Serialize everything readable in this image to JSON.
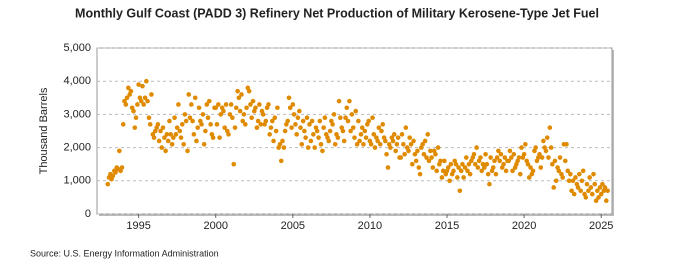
{
  "chart_data": {
    "type": "scatter",
    "title": "Monthly Gulf Coast (PADD 3) Refinery Net Production of Military Kerosene-Type Jet Fuel",
    "y_label": "Thousand Barrels",
    "source": "Source: U.S. Energy Information Administration",
    "color": "#e08a00",
    "grid": true,
    "xlim": [
      1992.3,
      2025.7
    ],
    "xticks": [
      1995,
      2000,
      2005,
      2010,
      2015,
      2020,
      2025
    ],
    "ylim": [
      0,
      5000
    ],
    "yticks": [
      0,
      {
        "value": 1000,
        "label": "1,000"
      },
      {
        "value": 2000,
        "label": "2,000"
      },
      {
        "value": 3000,
        "label": "3,000"
      },
      {
        "value": 4000,
        "label": "4,000"
      },
      {
        "value": 5000,
        "label": "5,000"
      }
    ],
    "x": [
      1993.0,
      1993.08,
      1993.17,
      1993.25,
      1993.33,
      1993.42,
      1993.5,
      1993.58,
      1993.67,
      1993.75,
      1993.83,
      1993.92,
      1994.0,
      1994.08,
      1994.17,
      1994.25,
      1994.33,
      1994.42,
      1994.5,
      1994.58,
      1994.67,
      1994.75,
      1994.83,
      1994.92,
      1995.0,
      1995.08,
      1995.17,
      1995.25,
      1995.33,
      1995.42,
      1995.5,
      1995.58,
      1995.67,
      1995.75,
      1995.83,
      1995.92,
      1996.0,
      1996.08,
      1996.17,
      1996.25,
      1996.33,
      1996.42,
      1996.5,
      1996.58,
      1996.67,
      1996.75,
      1996.83,
      1996.92,
      1997.0,
      1997.08,
      1997.17,
      1997.25,
      1997.33,
      1997.42,
      1997.5,
      1997.58,
      1997.67,
      1997.75,
      1997.83,
      1997.92,
      1998.0,
      1998.08,
      1998.17,
      1998.25,
      1998.33,
      1998.42,
      1998.5,
      1998.58,
      1998.67,
      1998.75,
      1998.83,
      1998.92,
      1999.0,
      1999.08,
      1999.17,
      1999.25,
      1999.33,
      1999.42,
      1999.5,
      1999.58,
      1999.67,
      1999.75,
      1999.83,
      1999.92,
      2000.0,
      2000.08,
      2000.17,
      2000.25,
      2000.33,
      2000.42,
      2000.5,
      2000.58,
      2000.67,
      2000.75,
      2000.83,
      2000.92,
      2001.0,
      2001.08,
      2001.17,
      2001.25,
      2001.33,
      2001.42,
      2001.5,
      2001.58,
      2001.67,
      2001.75,
      2001.83,
      2001.92,
      2002.0,
      2002.08,
      2002.17,
      2002.25,
      2002.33,
      2002.42,
      2002.5,
      2002.58,
      2002.67,
      2002.75,
      2002.83,
      2002.92,
      2003.0,
      2003.08,
      2003.17,
      2003.25,
      2003.33,
      2003.42,
      2003.5,
      2003.58,
      2003.67,
      2003.75,
      2003.83,
      2003.92,
      2004.0,
      2004.08,
      2004.17,
      2004.25,
      2004.33,
      2004.42,
      2004.5,
      2004.58,
      2004.67,
      2004.75,
      2004.83,
      2004.92,
      2005.0,
      2005.08,
      2005.17,
      2005.25,
      2005.33,
      2005.42,
      2005.5,
      2005.58,
      2005.67,
      2005.75,
      2005.83,
      2005.92,
      2006.0,
      2006.08,
      2006.17,
      2006.25,
      2006.33,
      2006.42,
      2006.5,
      2006.58,
      2006.67,
      2006.75,
      2006.83,
      2006.92,
      2007.0,
      2007.08,
      2007.17,
      2007.25,
      2007.33,
      2007.42,
      2007.5,
      2007.58,
      2007.67,
      2007.75,
      2007.83,
      2007.92,
      2008.0,
      2008.08,
      2008.17,
      2008.25,
      2008.33,
      2008.42,
      2008.5,
      2008.58,
      2008.67,
      2008.75,
      2008.83,
      2008.92,
      2009.0,
      2009.08,
      2009.17,
      2009.25,
      2009.33,
      2009.42,
      2009.5,
      2009.58,
      2009.67,
      2009.75,
      2009.83,
      2009.92,
      2010.0,
      2010.08,
      2010.17,
      2010.25,
      2010.33,
      2010.42,
      2010.5,
      2010.58,
      2010.67,
      2010.75,
      2010.83,
      2010.92,
      2011.0,
      2011.08,
      2011.17,
      2011.25,
      2011.33,
      2011.42,
      2011.5,
      2011.58,
      2011.67,
      2011.75,
      2011.83,
      2011.92,
      2012.0,
      2012.08,
      2012.17,
      2012.25,
      2012.33,
      2012.42,
      2012.5,
      2012.58,
      2012.67,
      2012.75,
      2012.83,
      2012.92,
      2013.0,
      2013.08,
      2013.17,
      2013.25,
      2013.33,
      2013.42,
      2013.5,
      2013.58,
      2013.67,
      2013.75,
      2013.83,
      2013.92,
      2014.0,
      2014.08,
      2014.17,
      2014.25,
      2014.33,
      2014.42,
      2014.5,
      2014.58,
      2014.67,
      2014.75,
      2014.83,
      2014.92,
      2015.0,
      2015.08,
      2015.17,
      2015.25,
      2015.33,
      2015.42,
      2015.5,
      2015.58,
      2015.67,
      2015.75,
      2015.83,
      2015.92,
      2016.0,
      2016.08,
      2016.17,
      2016.25,
      2016.33,
      2016.42,
      2016.5,
      2016.58,
      2016.67,
      2016.75,
      2016.83,
      2016.92,
      2017.0,
      2017.08,
      2017.17,
      2017.25,
      2017.33,
      2017.42,
      2017.5,
      2017.58,
      2017.67,
      2017.75,
      2017.83,
      2017.92,
      2018.0,
      2018.08,
      2018.17,
      2018.25,
      2018.33,
      2018.42,
      2018.5,
      2018.58,
      2018.67,
      2018.75,
      2018.83,
      2018.92,
      2019.0,
      2019.08,
      2019.17,
      2019.25,
      2019.33,
      2019.42,
      2019.5,
      2019.58,
      2019.67,
      2019.75,
      2019.83,
      2019.92,
      2020.0,
      2020.08,
      2020.17,
      2020.25,
      2020.33,
      2020.42,
      2020.5,
      2020.58,
      2020.67,
      2020.75,
      2020.83,
      2020.92,
      2021.0,
      2021.08,
      2021.17,
      2021.25,
      2021.33,
      2021.42,
      2021.5,
      2021.58,
      2021.67,
      2021.75,
      2021.83,
      2021.92,
      2022.0,
      2022.08,
      2022.17,
      2022.25,
      2022.33,
      2022.42,
      2022.5,
      2022.58,
      2022.67,
      2022.75,
      2022.83,
      2022.92,
      2023.0,
      2023.08,
      2023.17,
      2023.25,
      2023.33,
      2023.42,
      2023.5,
      2023.58,
      2023.67,
      2023.75,
      2023.83,
      2023.92,
      2024.0,
      2024.08,
      2024.17,
      2024.25,
      2024.33,
      2024.42,
      2024.5,
      2024.58,
      2024.67,
      2024.75,
      2024.83,
      2024.92,
      2025.0,
      2025.08,
      2025.17,
      2025.25,
      2025.33,
      2025.42
    ],
    "values": [
      900,
      1100,
      1200,
      1050,
      1150,
      1300,
      1250,
      1400,
      1350,
      1900,
      1300,
      1400,
      2700,
      3400,
      3300,
      3500,
      3800,
      3600,
      3700,
      3200,
      3100,
      2600,
      2900,
      3300,
      3900,
      3500,
      3400,
      3850,
      3300,
      3500,
      4000,
      3400,
      2900,
      2700,
      3600,
      2400,
      2300,
      2500,
      2600,
      2700,
      2200,
      2500,
      2000,
      2600,
      2300,
      1900,
      2400,
      2200,
      2800,
      2400,
      2100,
      2300,
      2900,
      2400,
      2600,
      3300,
      2500,
      2300,
      2700,
      2100,
      3000,
      2800,
      1900,
      3600,
      2900,
      3300,
      2800,
      2400,
      3500,
      2200,
      2600,
      3200,
      2800,
      2700,
      3000,
      2100,
      2500,
      3300,
      2900,
      3400,
      2700,
      2400,
      2300,
      3200,
      3200,
      2700,
      3300,
      2300,
      3000,
      3200,
      3100,
      2600,
      3300,
      2500,
      2400,
      3000,
      3300,
      2900,
      1500,
      2600,
      3200,
      3700,
      3500,
      3100,
      3600,
      2800,
      3000,
      2700,
      3200,
      3800,
      3700,
      3300,
      2900,
      3400,
      3100,
      3200,
      2600,
      2800,
      3300,
      2700,
      3100,
      3000,
      2700,
      2800,
      3200,
      3300,
      2400,
      2600,
      2800,
      2200,
      2900,
      2500,
      3200,
      2000,
      2100,
      1600,
      2200,
      2000,
      2500,
      2700,
      2800,
      3500,
      3200,
      2600,
      3300,
      3000,
      2700,
      2400,
      2900,
      3100,
      2600,
      2100,
      2800,
      2500,
      2300,
      2900,
      2000,
      2700,
      2200,
      2800,
      2400,
      2000,
      2600,
      2500,
      2300,
      2800,
      2100,
      1900,
      2600,
      2900,
      2400,
      2300,
      2200,
      2500,
      2800,
      2700,
      3000,
      2100,
      2400,
      2300,
      3400,
      2900,
      2600,
      2500,
      2200,
      2900,
      3200,
      2800,
      3400,
      2500,
      3000,
      2600,
      2300,
      3100,
      2100,
      2800,
      2200,
      2400,
      2600,
      2100,
      2500,
      2300,
      2700,
      2800,
      2200,
      2100,
      2900,
      2400,
      2000,
      2300,
      2200,
      2600,
      2100,
      2500,
      2700,
      2300,
      2200,
      1800,
      1400,
      2100,
      2000,
      2300,
      2200,
      2400,
      1900,
      2100,
      2300,
      1700,
      1700,
      2400,
      2100,
      1800,
      2600,
      2000,
      1900,
      2300,
      2100,
      1500,
      2200,
      1800,
      1600,
      1900,
      1400,
      1200,
      2000,
      2100,
      1800,
      2200,
      1700,
      2400,
      1600,
      1900,
      1700,
      1400,
      1900,
      1800,
      1300,
      2000,
      1500,
      1600,
      1100,
      1300,
      1600,
      1200,
      1300,
      1400,
      1000,
      1500,
      1200,
      1300,
      1600,
      1500,
      1100,
      1400,
      700,
      1300,
      1500,
      1100,
      1400,
      1700,
      1300,
      1500,
      1200,
      1600,
      1700,
      1800,
      1500,
      2000,
      1400,
      1600,
      1700,
      1300,
      1500,
      1400,
      1800,
      1500,
      1200,
      900,
      1700,
      1300,
      1400,
      1600,
      1200,
      1700,
      1900,
      1600,
      1800,
      1400,
      1500,
      1700,
      1300,
      1600,
      1600,
      1900,
      1700,
      1300,
      1800,
      1400,
      1500,
      1600,
      1700,
      1200,
      2000,
      1700,
      1800,
      2100,
      1600,
      1500,
      1100,
      1400,
      1200,
      1300,
      1900,
      2000,
      1600,
      1700,
      1800,
      1400,
      1700,
      2200,
      2000,
      1900,
      2300,
      1700,
      2600,
      2000,
      1500,
      800,
      1600,
      1000,
      1400,
      1300,
      1700,
      1200,
      1100,
      2100,
      1600,
      2100,
      1300,
      1000,
      1200,
      700,
      1000,
      600,
      1100,
      900,
      800,
      1200,
      700,
      1000,
      1300,
      600,
      500,
      900,
      700,
      1100,
      800,
      600,
      1200,
      900,
      400,
      700,
      500,
      800,
      600,
      900,
      700,
      800,
      400,
      700
    ]
  }
}
